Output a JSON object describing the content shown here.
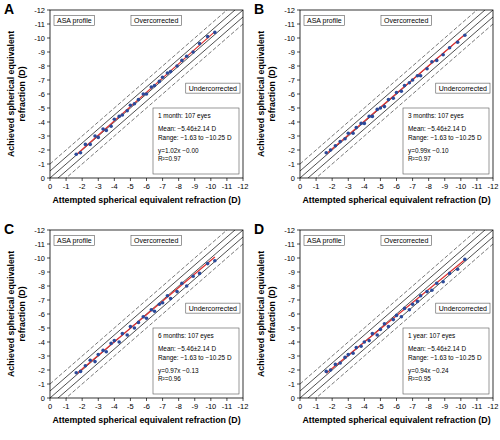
{
  "chart_data": [
    {
      "type": "scatter",
      "panel": "A",
      "x_label": "Attempted spherical equivalent refraction (D)",
      "y_label": "Achieved spherical equivalent refraction (D)",
      "xlim": [
        0,
        -12
      ],
      "ylim": [
        0,
        -12
      ],
      "xticks": [
        0,
        -1,
        -2,
        -3,
        -4,
        -5,
        -6,
        -7,
        -8,
        -9,
        -10,
        -11,
        -12
      ],
      "yticks": [
        0,
        -1,
        -2,
        -3,
        -4,
        -5,
        -6,
        -7,
        -8,
        -9,
        -10,
        -11,
        -12
      ],
      "grid": false,
      "color": "#2b4a9a",
      "marker": "circle",
      "x": [
        -1.63,
        -1.9,
        -2.2,
        -2.5,
        -2.8,
        -3.0,
        -3.3,
        -3.5,
        -3.8,
        -4.0,
        -4.3,
        -4.5,
        -4.8,
        -5.0,
        -5.25,
        -5.5,
        -5.8,
        -6.0,
        -6.3,
        -6.5,
        -6.8,
        -7.0,
        -7.3,
        -7.5,
        -7.9,
        -8.2,
        -8.5,
        -8.9,
        -9.3,
        -9.8,
        -10.25
      ],
      "values": [
        -1.7,
        -1.8,
        -2.4,
        -2.4,
        -3.0,
        -2.9,
        -3.5,
        -3.4,
        -3.7,
        -4.2,
        -4.4,
        -4.5,
        -4.8,
        -5.2,
        -5.3,
        -5.6,
        -6.0,
        -6.0,
        -6.5,
        -6.6,
        -6.9,
        -7.2,
        -7.5,
        -7.6,
        -8.0,
        -8.4,
        -8.7,
        -9.0,
        -9.6,
        -10.1,
        -10.4
      ],
      "fit": {
        "slope": 1.02,
        "intercept": 0,
        "color": "#e03030",
        "range": [
          -1.63,
          -10.25
        ]
      },
      "reference_lines": [
        {
          "offset": 0,
          "line_style": "solid"
        },
        {
          "offset": 0.5,
          "line_style": "solid"
        },
        {
          "offset": -0.5,
          "line_style": "solid"
        },
        {
          "offset": 1,
          "line_style": "dashed"
        },
        {
          "offset": -1,
          "line_style": "dashed"
        }
      ],
      "labels": {
        "profile": "ASA profile",
        "over": "Overcorrected",
        "under": "Undercorrected"
      },
      "stats": [
        "1 month: 107 eyes",
        "Mean: −5.46±2.14 D",
        "Range: −1.63 to −10.25 D",
        "y=1.02x −0.00",
        "R²=0.97"
      ]
    },
    {
      "type": "scatter",
      "panel": "B",
      "x_label": "Attempted spherical equivalent refraction (D)",
      "y_label": "Achieved spherical equivalent refraction (D)",
      "xlim": [
        0,
        -12
      ],
      "ylim": [
        0,
        -12
      ],
      "xticks": [
        0,
        -1,
        -2,
        -3,
        -4,
        -5,
        -6,
        -7,
        -8,
        -9,
        -10,
        -11,
        -12
      ],
      "yticks": [
        0,
        -1,
        -2,
        -3,
        -4,
        -5,
        -6,
        -7,
        -8,
        -9,
        -10,
        -11,
        -12
      ],
      "grid": false,
      "color": "#2b4a9a",
      "marker": "circle",
      "x": [
        -1.63,
        -1.9,
        -2.2,
        -2.5,
        -2.8,
        -3.0,
        -3.3,
        -3.5,
        -3.8,
        -4.0,
        -4.3,
        -4.5,
        -4.8,
        -5.0,
        -5.25,
        -5.5,
        -5.8,
        -6.0,
        -6.3,
        -6.5,
        -6.8,
        -7.0,
        -7.3,
        -7.5,
        -7.9,
        -8.2,
        -8.5,
        -8.9,
        -9.3,
        -9.8,
        -10.25
      ],
      "values": [
        -1.8,
        -2.0,
        -2.3,
        -2.6,
        -2.8,
        -3.2,
        -3.2,
        -3.6,
        -3.9,
        -3.9,
        -4.4,
        -4.4,
        -4.9,
        -5.0,
        -5.1,
        -5.6,
        -5.7,
        -6.1,
        -6.2,
        -6.6,
        -6.8,
        -7.0,
        -7.3,
        -7.3,
        -7.8,
        -8.3,
        -8.4,
        -8.8,
        -9.3,
        -9.7,
        -10.2
      ],
      "fit": {
        "slope": 0.99,
        "intercept": -0.1,
        "color": "#e03030",
        "range": [
          -1.63,
          -10.25
        ]
      },
      "reference_lines": [
        {
          "offset": 0,
          "line_style": "solid"
        },
        {
          "offset": 0.5,
          "line_style": "solid"
        },
        {
          "offset": -0.5,
          "line_style": "solid"
        },
        {
          "offset": 1,
          "line_style": "dashed"
        },
        {
          "offset": -1,
          "line_style": "dashed"
        }
      ],
      "labels": {
        "profile": "ASA profile",
        "over": "Overcorrected",
        "under": "Undercorrected"
      },
      "stats": [
        "3 months: 107 eyes",
        "Mean: −5.46±2.14 D",
        "Range: −1.63 to −10.25 D",
        "y=0.99x −0.10",
        "R²=0.97"
      ]
    },
    {
      "type": "scatter",
      "panel": "C",
      "x_label": "Attempted spherical equivalent refraction (D)",
      "y_label": "Achieved spherical equivalent refraction (D)",
      "xlim": [
        0,
        -12
      ],
      "ylim": [
        0,
        -12
      ],
      "xticks": [
        0,
        -1,
        -2,
        -3,
        -4,
        -5,
        -6,
        -7,
        -8,
        -9,
        -10,
        -11,
        -12
      ],
      "yticks": [
        0,
        -1,
        -2,
        -3,
        -4,
        -5,
        -6,
        -7,
        -8,
        -9,
        -10,
        -11,
        -12
      ],
      "grid": false,
      "color": "#2b4a9a",
      "marker": "circle",
      "x": [
        -1.63,
        -1.9,
        -2.2,
        -2.5,
        -2.8,
        -3.0,
        -3.3,
        -3.5,
        -3.8,
        -4.0,
        -4.3,
        -4.5,
        -4.8,
        -5.0,
        -5.25,
        -5.5,
        -5.8,
        -6.0,
        -6.3,
        -6.5,
        -6.8,
        -7.0,
        -7.3,
        -7.5,
        -7.9,
        -8.2,
        -8.5,
        -8.9,
        -9.3,
        -9.8,
        -10.25
      ],
      "values": [
        -1.8,
        -1.9,
        -2.3,
        -2.7,
        -2.6,
        -3.1,
        -3.4,
        -3.3,
        -3.9,
        -4.1,
        -4.0,
        -4.6,
        -4.5,
        -5.1,
        -5.0,
        -5.4,
        -5.8,
        -5.7,
        -6.3,
        -6.2,
        -6.7,
        -6.8,
        -7.3,
        -7.1,
        -7.6,
        -8.2,
        -8.0,
        -8.7,
        -8.9,
        -9.6,
        -9.8
      ],
      "fit": {
        "slope": 0.97,
        "intercept": -0.13,
        "color": "#e03030",
        "range": [
          -1.63,
          -10.25
        ]
      },
      "reference_lines": [
        {
          "offset": 0,
          "line_style": "solid"
        },
        {
          "offset": 0.5,
          "line_style": "solid"
        },
        {
          "offset": -0.5,
          "line_style": "solid"
        },
        {
          "offset": 1,
          "line_style": "dashed"
        },
        {
          "offset": -1,
          "line_style": "dashed"
        }
      ],
      "labels": {
        "profile": "ASA profile",
        "over": "Overcorrected",
        "under": "Undercorrected"
      },
      "stats": [
        "6 months: 107 eyes",
        "Mean: −5.46±2.14 D",
        "Range: −1.63 to −10.25 D",
        "y=0.97x −0.13",
        "R²=0.96"
      ]
    },
    {
      "type": "scatter",
      "panel": "D",
      "x_label": "Attempted spherical equivalent refraction (D)",
      "y_label": "Achieved spherical equivalent refraction (D)",
      "xlim": [
        0,
        -12
      ],
      "ylim": [
        0,
        -12
      ],
      "xticks": [
        0,
        -1,
        -2,
        -3,
        -4,
        -5,
        -6,
        -7,
        -8,
        -9,
        -10,
        -11,
        -12
      ],
      "yticks": [
        0,
        -1,
        -2,
        -3,
        -4,
        -5,
        -6,
        -7,
        -8,
        -9,
        -10,
        -11,
        -12
      ],
      "grid": false,
      "color": "#2b4a9a",
      "marker": "circle",
      "x": [
        -1.63,
        -1.9,
        -2.2,
        -2.5,
        -2.8,
        -3.0,
        -3.3,
        -3.5,
        -3.8,
        -4.0,
        -4.3,
        -4.5,
        -4.8,
        -5.0,
        -5.25,
        -5.5,
        -5.8,
        -6.0,
        -6.3,
        -6.5,
        -6.8,
        -7.0,
        -7.3,
        -7.5,
        -7.9,
        -8.2,
        -8.5,
        -8.9,
        -9.3,
        -9.8,
        -10.25
      ],
      "values": [
        -1.9,
        -2.0,
        -2.4,
        -2.5,
        -2.9,
        -3.1,
        -3.2,
        -3.6,
        -3.7,
        -4.0,
        -4.1,
        -4.6,
        -4.5,
        -4.9,
        -5.3,
        -5.1,
        -5.6,
        -5.9,
        -5.8,
        -6.4,
        -6.3,
        -6.7,
        -6.9,
        -7.3,
        -7.6,
        -7.7,
        -8.2,
        -8.3,
        -8.9,
        -9.2,
        -9.9
      ],
      "fit": {
        "slope": 0.94,
        "intercept": -0.24,
        "color": "#e03030",
        "range": [
          -1.63,
          -10.25
        ]
      },
      "reference_lines": [
        {
          "offset": 0,
          "line_style": "solid"
        },
        {
          "offset": 0.5,
          "line_style": "solid"
        },
        {
          "offset": -0.5,
          "line_style": "solid"
        },
        {
          "offset": 1,
          "line_style": "dashed"
        },
        {
          "offset": -1,
          "line_style": "dashed"
        }
      ],
      "labels": {
        "profile": "ASA profile",
        "over": "Overcorrected",
        "under": "Undercorrected"
      },
      "stats": [
        "1 year: 107 eyes",
        "Mean: −5.46±2.14 D",
        "Range: −1.63 to −10.25 D",
        "y=0.94x −0.24",
        "R²=0.95"
      ]
    }
  ]
}
